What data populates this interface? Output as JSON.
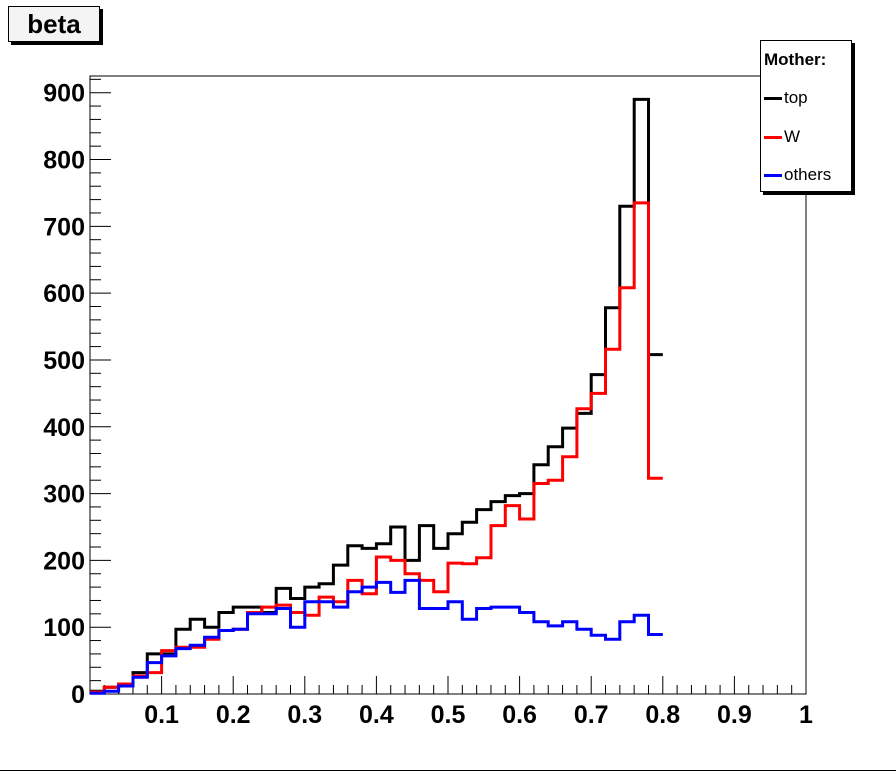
{
  "chart_data": {
    "type": "histogram",
    "title": "beta",
    "xlabel": "",
    "ylabel": "",
    "xlim": [
      0,
      1
    ],
    "ylim": [
      0,
      925
    ],
    "bin_width": 0.02,
    "x_ticks": [
      0.1,
      0.2,
      0.3,
      0.4,
      0.5,
      0.6,
      0.7,
      0.8,
      0.9,
      1
    ],
    "x_tick_labels": [
      "0.1",
      "0.2",
      "0.3",
      "0.4",
      "0.5",
      "0.6",
      "0.7",
      "0.8",
      "0.9",
      "1"
    ],
    "y_ticks": [
      0,
      100,
      200,
      300,
      400,
      500,
      600,
      700,
      800,
      900
    ],
    "y_tick_labels": [
      "0",
      "100",
      "200",
      "300",
      "400",
      "500",
      "600",
      "700",
      "800",
      "900"
    ],
    "legend": {
      "header": "Mother:",
      "placement": "top-right"
    },
    "series": [
      {
        "name": "top",
        "color": "#000000",
        "values": [
          4,
          10,
          14,
          32,
          60,
          60,
          97,
          112,
          100,
          122,
          130,
          130,
          122,
          158,
          143,
          160,
          165,
          193,
          222,
          218,
          225,
          250,
          200,
          252,
          218,
          240,
          257,
          276,
          288,
          297,
          300,
          343,
          370,
          398,
          420,
          478,
          578,
          730,
          890,
          508
        ]
      },
      {
        "name": "W",
        "color": "#ff0000",
        "values": [
          3,
          10,
          15,
          27,
          32,
          65,
          70,
          70,
          82,
          95,
          97,
          122,
          130,
          133,
          122,
          118,
          145,
          138,
          170,
          150,
          205,
          200,
          180,
          170,
          153,
          196,
          195,
          204,
          252,
          282,
          262,
          315,
          320,
          355,
          427,
          450,
          516,
          608,
          735,
          323
        ]
      },
      {
        "name": "others",
        "color": "#0000ff",
        "values": [
          1,
          4,
          12,
          25,
          47,
          57,
          68,
          73,
          85,
          95,
          97,
          120,
          120,
          128,
          100,
          138,
          138,
          130,
          153,
          160,
          167,
          152,
          170,
          128,
          128,
          138,
          112,
          128,
          130,
          130,
          122,
          108,
          102,
          108,
          97,
          88,
          82,
          108,
          118,
          89
        ]
      }
    ]
  }
}
